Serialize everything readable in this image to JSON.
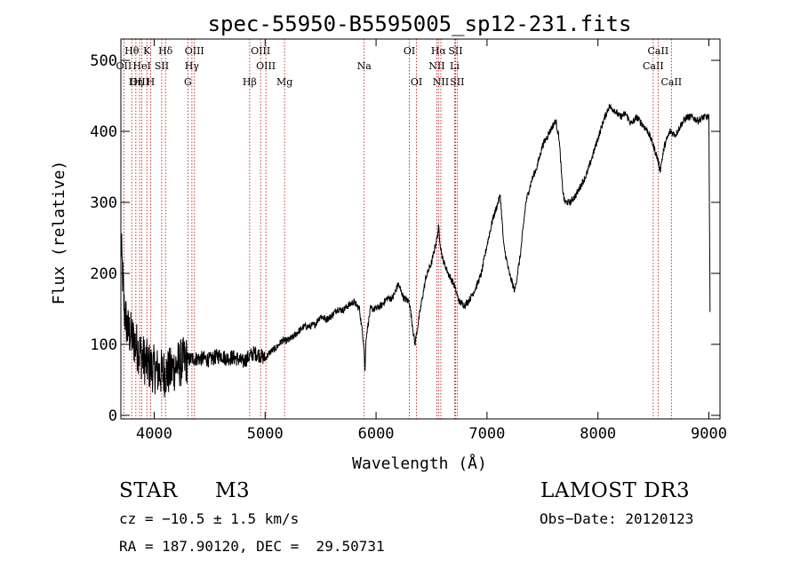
{
  "chart_data": {
    "type": "line",
    "title": "spec-55950-B5595005_sp12-231.fits",
    "xlabel": "Wavelength (Å)",
    "ylabel": "Flux (relative)",
    "xlim": [
      3700,
      9100
    ],
    "ylim": [
      -5,
      530
    ],
    "xticks": [
      4000,
      5000,
      6000,
      7000,
      8000,
      9000
    ],
    "yticks": [
      0,
      100,
      200,
      300,
      400,
      500
    ],
    "series": [
      {
        "name": "flux",
        "x": [
          3700,
          3730,
          3760,
          3800,
          3850,
          3900,
          3950,
          4000,
          4050,
          4100,
          4150,
          4200,
          4250,
          4300,
          4350,
          4400,
          4450,
          4500,
          4550,
          4600,
          4650,
          4700,
          4750,
          4800,
          4850,
          4900,
          4950,
          5000,
          5050,
          5100,
          5150,
          5200,
          5250,
          5300,
          5350,
          5400,
          5450,
          5500,
          5550,
          5600,
          5650,
          5700,
          5750,
          5800,
          5850,
          5890,
          5900,
          5910,
          5950,
          6000,
          6050,
          6100,
          6150,
          6200,
          6250,
          6300,
          6350,
          6400,
          6450,
          6500,
          6550,
          6563,
          6580,
          6600,
          6650,
          6700,
          6750,
          6800,
          6850,
          6900,
          6950,
          7000,
          7050,
          7100,
          7120,
          7150,
          7200,
          7250,
          7300,
          7350,
          7400,
          7450,
          7500,
          7550,
          7600,
          7620,
          7650,
          7680,
          7700,
          7750,
          7800,
          7850,
          7900,
          7950,
          8000,
          8050,
          8100,
          8150,
          8200,
          8250,
          8300,
          8350,
          8400,
          8450,
          8500,
          8540,
          8560,
          8600,
          8650,
          8700,
          8750,
          8800,
          8850,
          8900,
          8950,
          9000,
          9010
        ],
        "y": [
          245,
          150,
          120,
          110,
          95,
          80,
          70,
          65,
          60,
          60,
          62,
          70,
          75,
          78,
          80,
          80,
          80,
          78,
          82,
          85,
          80,
          82,
          80,
          75,
          82,
          88,
          85,
          80,
          90,
          95,
          105,
          105,
          110,
          118,
          125,
          125,
          128,
          140,
          135,
          140,
          150,
          148,
          155,
          160,
          150,
          100,
          60,
          110,
          150,
          150,
          155,
          165,
          165,
          185,
          165,
          160,
          100,
          150,
          195,
          215,
          250,
          265,
          240,
          220,
          200,
          185,
          160,
          155,
          165,
          180,
          200,
          240,
          275,
          300,
          310,
          240,
          200,
          175,
          225,
          300,
          330,
          350,
          380,
          395,
          410,
          415,
          390,
          320,
          300,
          300,
          310,
          325,
          340,
          365,
          390,
          415,
          435,
          430,
          420,
          425,
          410,
          420,
          410,
          400,
          380,
          360,
          345,
          380,
          400,
          395,
          410,
          420,
          420,
          415,
          420,
          420,
          150
        ]
      }
    ],
    "lines": [
      {
        "label": "Hθ",
        "wave": 3798,
        "row": 1
      },
      {
        "label": "OII",
        "wave": 3727,
        "row": 2
      },
      {
        "label": "OIII",
        "wave": 3869,
        "row": 3
      },
      {
        "label": "K",
        "wave": 3934,
        "row": 1
      },
      {
        "label": "HeI",
        "wave": 3889,
        "row": 2
      },
      {
        "label": "Hη",
        "wave": 3835,
        "row": 3
      },
      {
        "label": "H",
        "wave": 3968,
        "row": 3
      },
      {
        "label": "SII",
        "wave": 4068,
        "row": 2
      },
      {
        "label": "Hδ",
        "wave": 4102,
        "row": 1
      },
      {
        "label": "OIII",
        "wave": 4363,
        "row": 1
      },
      {
        "label": "Hγ",
        "wave": 4340,
        "row": 2
      },
      {
        "label": "G",
        "wave": 4304,
        "row": 3
      },
      {
        "label": "Hβ",
        "wave": 4861,
        "row": 3
      },
      {
        "label": "OIII",
        "wave": 4959,
        "row": 1
      },
      {
        "label": "OIII",
        "wave": 5007,
        "row": 2
      },
      {
        "label": "Mg",
        "wave": 5175,
        "row": 3
      },
      {
        "label": "Na",
        "wave": 5893,
        "row": 2
      },
      {
        "label": "OI",
        "wave": 6300,
        "row": 1
      },
      {
        "label": "OI",
        "wave": 6364,
        "row": 3
      },
      {
        "label": "Hα",
        "wave": 6563,
        "row": 1
      },
      {
        "label": "NII",
        "wave": 6548,
        "row": 2
      },
      {
        "label": "NII",
        "wave": 6584,
        "row": 3
      },
      {
        "label": "SII",
        "wave": 6716,
        "row": 1
      },
      {
        "label": "Li",
        "wave": 6708,
        "row": 2
      },
      {
        "label": "SII",
        "wave": 6731,
        "row": 3
      },
      {
        "label": "CaII",
        "wave": 8498,
        "row": 2
      },
      {
        "label": "CaII",
        "wave": 8542,
        "row": 1
      },
      {
        "label": "CaII",
        "wave": 8662,
        "row": 3
      }
    ]
  },
  "info": {
    "object_class": "STAR",
    "subclass": "M3",
    "survey": "LAMOST DR3",
    "redshift": "cz = −10.5 ± 1.5 km/s",
    "obs_date": "Obs−Date: 20120123",
    "coords": "RA = 187.90120, DEC =  29.50731"
  },
  "colors": {
    "line_marker": "#c00000",
    "spectrum": "#000000",
    "axes": "#000000"
  }
}
